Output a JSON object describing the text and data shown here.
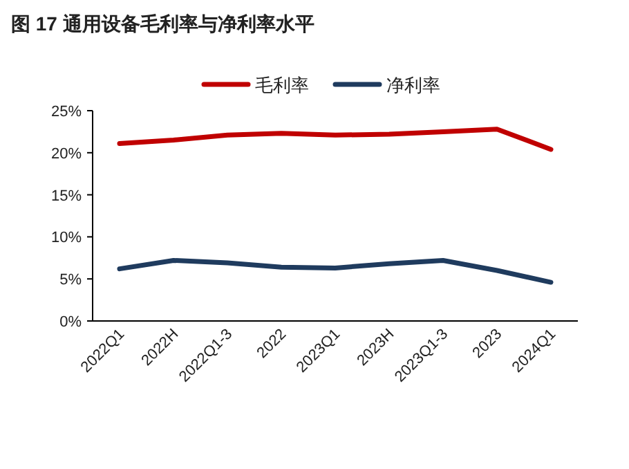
{
  "chart_data": {
    "type": "line",
    "title": "图 17   通用设备毛利率与净利率水平",
    "categories": [
      "2022Q1",
      "2022H",
      "2022Q1-3",
      "2022",
      "2023Q1",
      "2023H",
      "2023Q1-3",
      "2023",
      "2024Q1"
    ],
    "series": [
      {
        "name": "毛利率",
        "color": "#c00000",
        "values": [
          21.1,
          21.5,
          22.1,
          22.3,
          22.1,
          22.2,
          22.5,
          22.8,
          20.4
        ]
      },
      {
        "name": "净利率",
        "color": "#1f3b5e",
        "values": [
          6.2,
          7.2,
          6.9,
          6.4,
          6.3,
          6.8,
          7.2,
          6.0,
          4.6
        ]
      }
    ],
    "ylim": [
      0,
      25
    ],
    "yticks": [
      {
        "value": 0,
        "label": "0%"
      },
      {
        "value": 5,
        "label": "5%"
      },
      {
        "value": 10,
        "label": "10%"
      },
      {
        "value": 15,
        "label": "15%"
      },
      {
        "value": 20,
        "label": "20%"
      },
      {
        "value": 25,
        "label": "25%"
      }
    ],
    "grid": false,
    "legend": "top",
    "marker": "none",
    "line_style": "solid"
  }
}
